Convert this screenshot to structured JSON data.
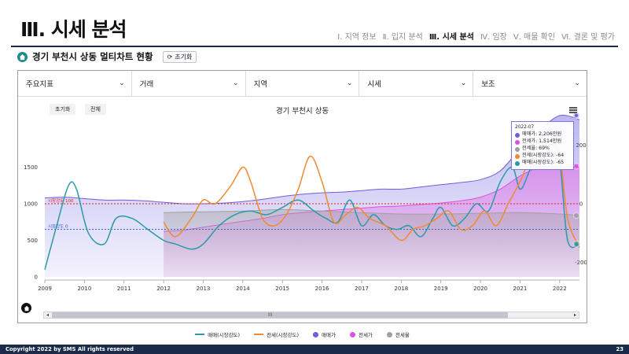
{
  "slide": {
    "title": "Ⅲ. 시세 분석",
    "nav": [
      {
        "label": "Ⅰ. 지역 정보",
        "active": false
      },
      {
        "label": "Ⅱ. 입지 분석",
        "active": false
      },
      {
        "label": "Ⅲ. 시세 분석",
        "active": true
      },
      {
        "label": "Ⅳ. 임장",
        "active": false
      },
      {
        "label": "Ⅴ. 매물 확인",
        "active": false
      },
      {
        "label": "Ⅵ. 결론 및 평가",
        "active": false
      }
    ]
  },
  "subheader": {
    "title": "경기 부천시 상동 멀티차트 현황",
    "reset_label": "초기화",
    "home_icon": "home-icon"
  },
  "selectors": [
    {
      "label": "주요지표"
    },
    {
      "label": "거래"
    },
    {
      "label": "지역"
    },
    {
      "label": "시세"
    },
    {
      "label": "보조"
    }
  ],
  "chart_toolbar": {
    "reset_label": "초기화",
    "all_label": "전체",
    "menu_icon": "hamburger-menu-icon"
  },
  "scrollbar": {
    "grip": "III",
    "left_arrow": "◂",
    "right_arrow": "▸"
  },
  "chart_data": {
    "type": "line",
    "title": "경기 부천시 상동",
    "x_ticks": [
      "2009",
      "2010",
      "2011",
      "2012",
      "2013",
      "2014",
      "2015",
      "2016",
      "2017",
      "2018",
      "2019",
      "2020",
      "2021",
      "2022"
    ],
    "x_range": [
      2009.0,
      2022.5
    ],
    "y_left_ticks": [
      "0",
      "500",
      "1000",
      "1500"
    ],
    "y_left_range": [
      0,
      2000
    ],
    "y_right_ticks": [
      "200",
      "0",
      "-200"
    ],
    "y_right_range": [
      -250,
      250
    ],
    "reference_lines": [
      {
        "label": "시장강도 100",
        "color": "#e02020",
        "y": 1000
      },
      {
        "label": "시장강도 0",
        "color": "#3060d0",
        "y": 650
      }
    ],
    "series": [
      {
        "name": "매매가",
        "kind": "area",
        "axis": "left",
        "color": "#6b5fe0",
        "x": [
          2009.0,
          2009.5,
          2010.0,
          2010.5,
          2011.0,
          2011.5,
          2012.0,
          2012.5,
          2013.0,
          2013.5,
          2014.0,
          2014.5,
          2015.0,
          2015.5,
          2016.0,
          2016.5,
          2017.0,
          2017.5,
          2018.0,
          2018.5,
          2019.0,
          2019.5,
          2020.0,
          2020.5,
          2021.0,
          2021.5,
          2022.0,
          2022.5
        ],
        "values": [
          1080,
          1090,
          1070,
          1050,
          1050,
          1040,
          1020,
          1000,
          1000,
          1010,
          1030,
          1060,
          1100,
          1130,
          1150,
          1160,
          1180,
          1200,
          1200,
          1230,
          1260,
          1290,
          1330,
          1450,
          1750,
          2000,
          2206,
          2150
        ]
      },
      {
        "name": "전세가",
        "kind": "area",
        "axis": "left",
        "color": "#e050e0",
        "x": [
          2012.0,
          2012.5,
          2013.0,
          2013.5,
          2014.0,
          2014.5,
          2015.0,
          2015.5,
          2016.0,
          2016.5,
          2017.0,
          2017.5,
          2018.0,
          2018.5,
          2019.0,
          2019.5,
          2020.0,
          2020.5,
          2021.0,
          2021.5,
          2022.0,
          2022.5
        ],
        "values": [
          620,
          640,
          680,
          720,
          760,
          800,
          850,
          880,
          900,
          920,
          940,
          960,
          970,
          990,
          1010,
          1040,
          1090,
          1200,
          1380,
          1500,
          1514,
          1500
        ]
      },
      {
        "name": "전세율",
        "kind": "area",
        "axis": "left",
        "color": "#a0a0a0",
        "x": [
          2012.0,
          2013.0,
          2014.0,
          2015.0,
          2016.0,
          2017.0,
          2018.0,
          2019.0,
          2020.0,
          2021.0,
          2022.0,
          2022.5
        ],
        "values": [
          880,
          890,
          900,
          920,
          900,
          880,
          860,
          860,
          870,
          880,
          860,
          840
        ]
      },
      {
        "name": "매매(시장강도)",
        "kind": "line",
        "axis": "left",
        "color": "#2a9aa8",
        "x": [
          2009.0,
          2009.3,
          2009.6,
          2009.8,
          2010.1,
          2010.5,
          2010.8,
          2011.2,
          2011.6,
          2012.0,
          2012.3,
          2012.7,
          2013.0,
          2013.4,
          2013.8,
          2014.2,
          2014.6,
          2015.0,
          2015.4,
          2015.8,
          2016.1,
          2016.4,
          2016.7,
          2017.0,
          2017.3,
          2017.6,
          2017.9,
          2018.2,
          2018.5,
          2018.8,
          2019.0,
          2019.3,
          2019.6,
          2019.9,
          2020.2,
          2020.5,
          2020.8,
          2021.0,
          2021.2,
          2021.4,
          2021.6,
          2021.8,
          2022.0,
          2022.2,
          2022.5
        ],
        "values": [
          100,
          700,
          1250,
          1200,
          600,
          450,
          800,
          800,
          650,
          500,
          450,
          380,
          450,
          700,
          850,
          900,
          850,
          950,
          1050,
          900,
          800,
          750,
          1050,
          700,
          850,
          700,
          650,
          700,
          550,
          800,
          950,
          700,
          800,
          1000,
          900,
          1300,
          1500,
          1200,
          1400,
          1700,
          1800,
          1800,
          1600,
          500,
          450
        ]
      },
      {
        "name": "전세(시장강도)",
        "kind": "line",
        "axis": "left",
        "color": "#f08a30",
        "x": [
          2012.0,
          2012.3,
          2012.7,
          2013.0,
          2013.3,
          2013.7,
          2014.0,
          2014.2,
          2014.5,
          2014.8,
          2015.1,
          2015.4,
          2015.7,
          2016.0,
          2016.3,
          2016.6,
          2016.9,
          2017.2,
          2017.6,
          2018.0,
          2018.3,
          2018.6,
          2018.9,
          2019.2,
          2019.5,
          2019.8,
          2020.1,
          2020.4,
          2020.7,
          2021.0,
          2021.2,
          2021.5,
          2021.8,
          2022.0,
          2022.2,
          2022.5
        ],
        "values": [
          750,
          550,
          800,
          1050,
          1000,
          1250,
          1500,
          1300,
          800,
          700,
          850,
          1200,
          1650,
          1300,
          750,
          850,
          950,
          800,
          700,
          500,
          650,
          700,
          800,
          900,
          650,
          700,
          900,
          700,
          1000,
          1300,
          1550,
          1750,
          1800,
          1700,
          800,
          400
        ]
      }
    ],
    "tooltip": {
      "date": "2022-07",
      "rows": [
        {
          "label": "매매가: 2,206만원",
          "color": "#6b5fe0"
        },
        {
          "label": "전세가: 1,514만원",
          "color": "#e050e0"
        },
        {
          "label": "전세율: 69%",
          "color": "#a0a0a0"
        },
        {
          "label": "전세(시장강도): -64",
          "color": "#f08a30"
        },
        {
          "label": "매매(시장강도): -65",
          "color": "#2a9aa8"
        }
      ]
    },
    "legend": [
      {
        "name": "매매(시장강도)",
        "color": "#2a9aa8",
        "shape": "line"
      },
      {
        "name": "전세(시장강도)",
        "color": "#f08a30",
        "shape": "line"
      },
      {
        "name": "매매가",
        "color": "#6b5fe0",
        "shape": "dot"
      },
      {
        "name": "전세가",
        "color": "#e050e0",
        "shape": "dot"
      },
      {
        "name": "전세율",
        "color": "#a0a0a0",
        "shape": "dot"
      }
    ]
  },
  "footer": {
    "copyright": "Copyright 2022 by SMS All rights reserved",
    "page_number": "23"
  }
}
